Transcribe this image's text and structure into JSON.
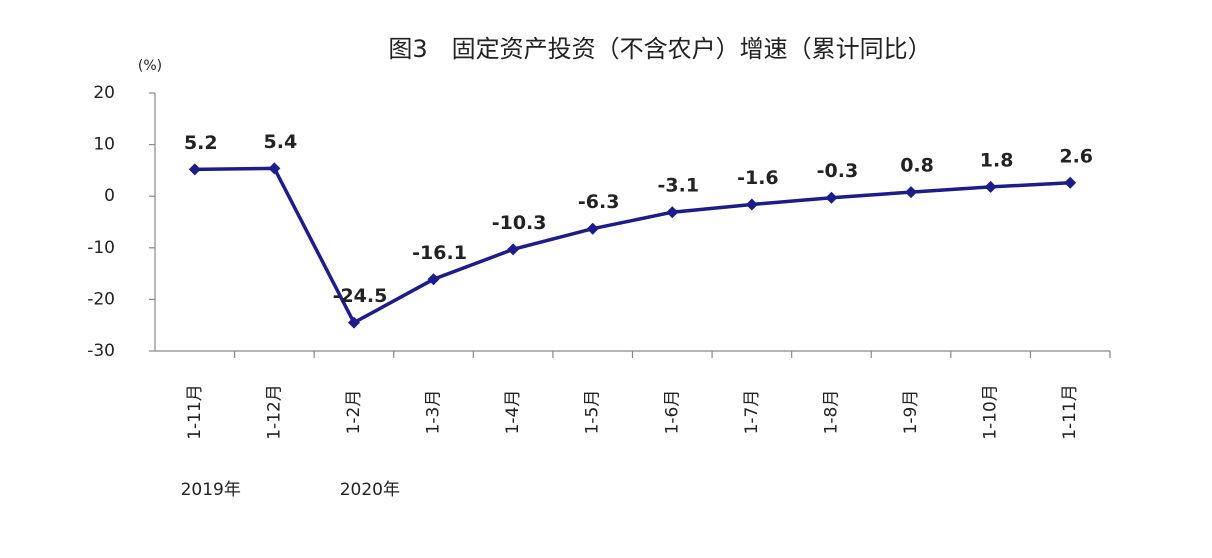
{
  "chart_data": {
    "type": "line",
    "title": "图3　固定资产投资（不含农户）增速（累计同比）",
    "y_unit": "(%)",
    "categories": [
      "1-11月",
      "1-12月",
      "1-2月",
      "1-3月",
      "1-4月",
      "1-5月",
      "1-6月",
      "1-7月",
      "1-8月",
      "1-9月",
      "1-10月",
      "1-11月"
    ],
    "series": [
      {
        "name": "增速",
        "color": "#1c1c8c",
        "values": [
          5.2,
          5.4,
          -24.5,
          -16.1,
          -10.3,
          -6.3,
          -3.1,
          -1.6,
          -0.3,
          0.8,
          1.8,
          2.6
        ]
      }
    ],
    "year_labels": [
      "2019年",
      "2020年"
    ],
    "ylim": [
      -30,
      20
    ],
    "yticks": [
      -30,
      -20,
      -10,
      0,
      10,
      20
    ],
    "grid": false
  }
}
